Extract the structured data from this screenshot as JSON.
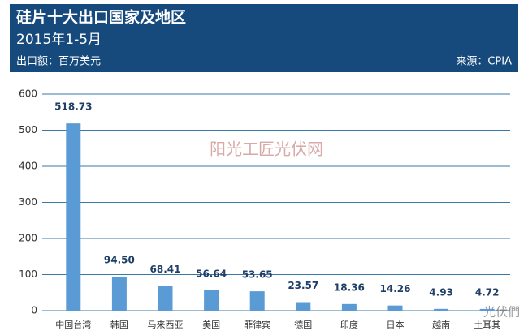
{
  "chart_data": {
    "type": "bar",
    "title": "硅片十大出口国家及地区",
    "subtitle": "2015年1-5月",
    "unit_label": "出口额：百万美元",
    "source": "来源：CPIA",
    "watermark": "阳光工匠光伏网",
    "watermark_logo": "光伏們",
    "categories": [
      "中国台湾",
      "韩国",
      "马来西亚",
      "美国",
      "菲律宾",
      "德国",
      "印度",
      "日本",
      "越南",
      "土耳其"
    ],
    "values": [
      518.73,
      94.5,
      68.41,
      56.64,
      53.65,
      23.57,
      18.36,
      14.26,
      4.93,
      4.72
    ],
    "value_labels": [
      "518.73",
      "94.50",
      "68.41",
      "56.64",
      "53.65",
      "23.57",
      "18.36",
      "14.26",
      "4.93",
      "4.72"
    ],
    "color": "#5b9bd5",
    "ylim": [
      0,
      600
    ],
    "yticks": [
      0,
      100,
      200,
      300,
      400,
      500,
      600
    ],
    "grid": true
  }
}
